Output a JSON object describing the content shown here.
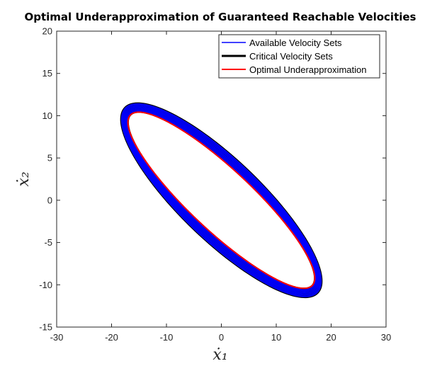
{
  "chart_data": {
    "type": "line",
    "title": "Optimal Underapproximation of Guaranteed Reachable Velocities",
    "xlabel": "ẋ₁",
    "ylabel": "ẋ₂",
    "xlim": [
      -30,
      30
    ],
    "ylim": [
      -15,
      20
    ],
    "xticks": [
      -30,
      -20,
      -10,
      0,
      10,
      20,
      30
    ],
    "yticks": [
      -15,
      -10,
      -5,
      0,
      5,
      10,
      15,
      20
    ],
    "grid": false,
    "legend_position": "top-right",
    "series": [
      {
        "name": "Available Velocity Sets",
        "color": "#0000ff",
        "shape": "ellipse-band",
        "center": [
          0,
          0
        ],
        "semi_axes": [
          20.2,
          4.95
        ],
        "angle_deg": -30,
        "band_count": 7,
        "band_spread": [
          -0.6,
          0.5
        ]
      },
      {
        "name": "Critical Velocity Sets",
        "color": "#000000",
        "shape": "ellipse-band",
        "center": [
          0,
          0
        ],
        "semi_axes": [
          20.2,
          4.95
        ],
        "angle_deg": -30,
        "band_count": 9,
        "band_spread": [
          -0.6,
          0.55
        ]
      },
      {
        "name": "Optimal Underapproximation",
        "color": "#ff0000",
        "shape": "ellipse",
        "center": [
          0,
          0
        ],
        "semi_axes": [
          19.5,
          4.25
        ],
        "angle_deg": -30
      }
    ]
  }
}
